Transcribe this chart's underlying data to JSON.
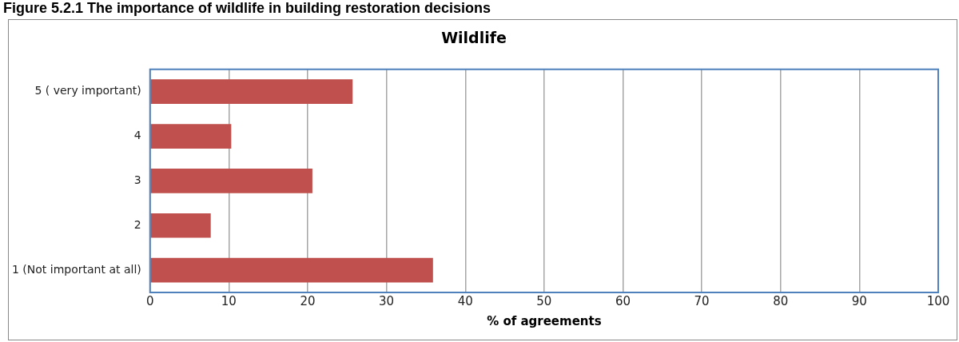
{
  "chart_data": {
    "type": "bar",
    "orientation": "horizontal",
    "title": "Wildlife",
    "xlabel": "% of agreements",
    "annotations": [
      "Figure 5.2.1 The importance of wildlife in building restoration decisions"
    ],
    "categories": [
      "5 ( very important)",
      "4",
      "3",
      "2",
      "1 (Not important at all)"
    ],
    "values": [
      25.7,
      10.3,
      20.6,
      7.7,
      35.9
    ],
    "color": "#c0504d",
    "xlim": [
      0,
      100
    ],
    "xticks": [
      0,
      10,
      20,
      30,
      40,
      50,
      60,
      70,
      80,
      90,
      100
    ],
    "grid": "x",
    "legend": false
  }
}
